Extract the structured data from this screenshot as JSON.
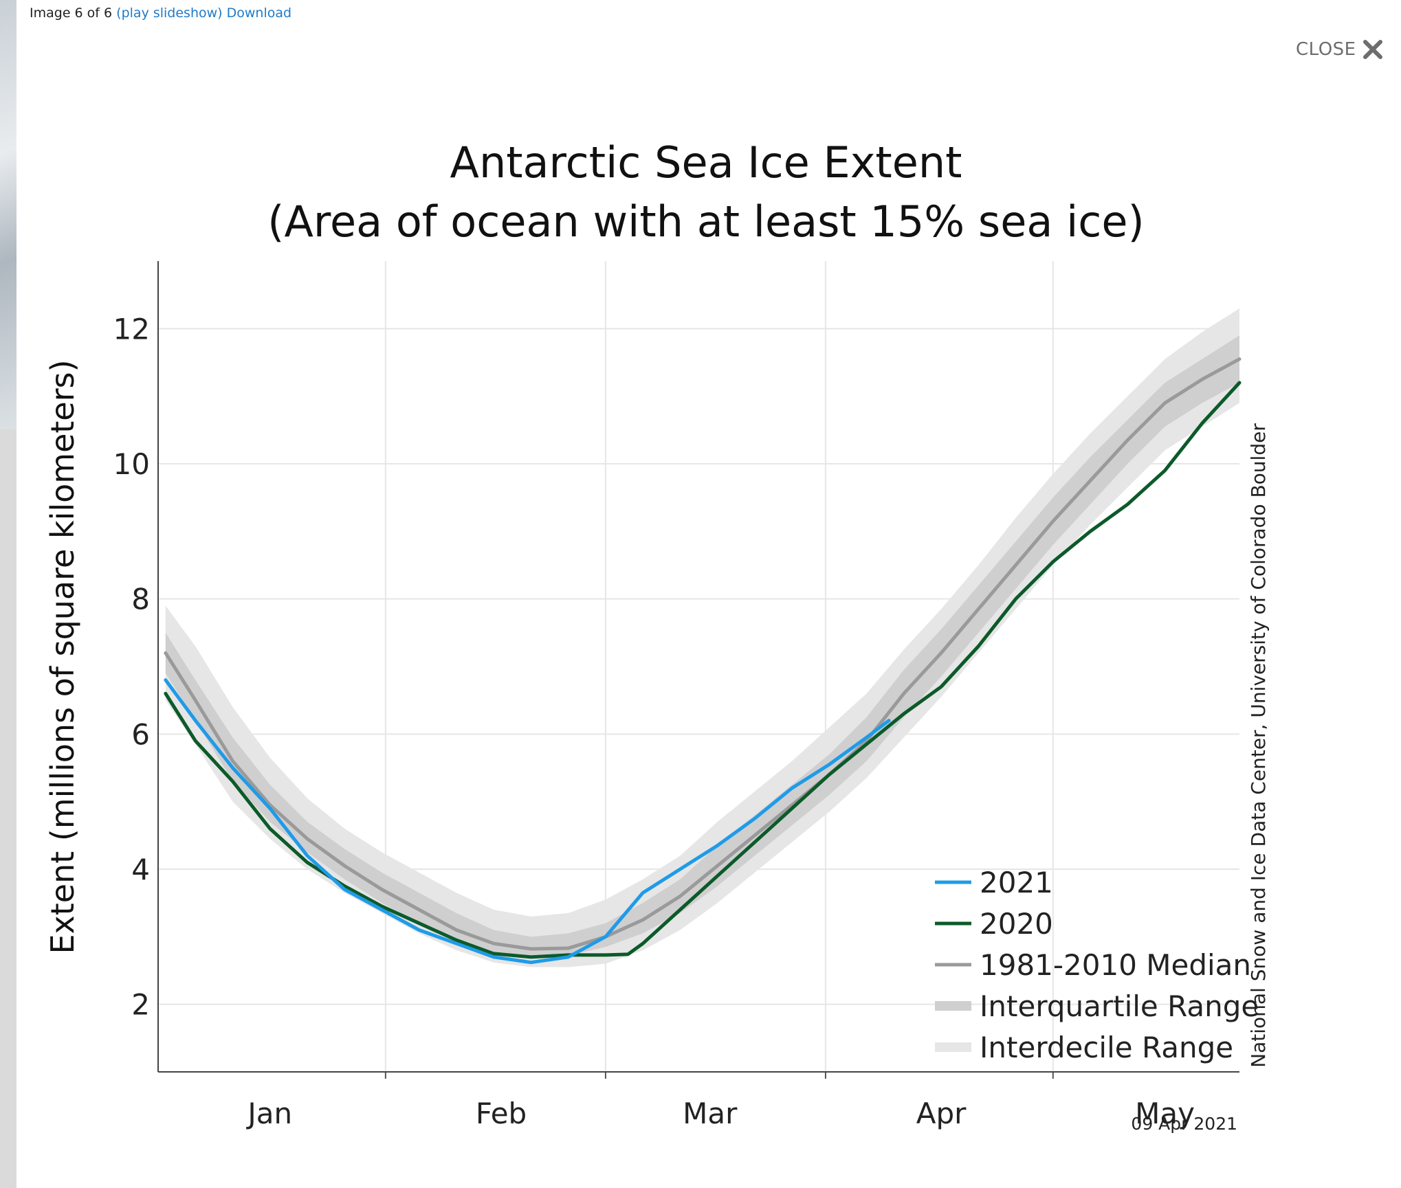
{
  "lightbox": {
    "counter": "Image 6 of 6",
    "slideshow_link": "(play slideshow)",
    "download_link": "Download",
    "close_label": "CLOSE"
  },
  "chart_data": {
    "type": "line",
    "title": "Antarctic Sea Ice Extent",
    "subtitle": "(Area of ocean with at least 15% sea ice)",
    "ylabel": "Extent (millions of square kilometers)",
    "xlabel": "",
    "xlim": [
      0,
      145
    ],
    "ylim": [
      1,
      13
    ],
    "yticks": [
      2,
      4,
      6,
      8,
      10,
      12
    ],
    "x_tick_labels": [
      {
        "label": "Jan",
        "x": 15
      },
      {
        "label": "Feb",
        "x": 46
      },
      {
        "label": "Mar",
        "x": 74
      },
      {
        "label": "Apr",
        "x": 105
      },
      {
        "label": "May",
        "x": 135
      }
    ],
    "x_unit": "day of year",
    "grid": true,
    "legend_position": "bottom-right",
    "credit": "National Snow and Ice Data Center, University of Colorado Boulder",
    "date_stamp": "09 Apr 2021",
    "colors": {
      "2021": "#1f9be8",
      "2020": "#0c5a2a",
      "median": "#9a9a9a",
      "iqr": "#cfcfcf",
      "idr": "#e6e6e6"
    },
    "series": [
      {
        "name": "2021",
        "x": [
          1,
          5,
          10,
          15,
          20,
          25,
          30,
          35,
          40,
          45,
          50,
          55,
          60,
          65,
          70,
          75,
          80,
          85,
          90,
          95,
          98
        ],
        "values": [
          6.8,
          6.2,
          5.5,
          4.9,
          4.2,
          3.7,
          3.4,
          3.1,
          2.9,
          2.7,
          2.62,
          2.7,
          3.0,
          3.65,
          4.0,
          4.35,
          4.75,
          5.2,
          5.55,
          5.95,
          6.2
        ]
      },
      {
        "name": "2020",
        "x": [
          1,
          5,
          10,
          15,
          20,
          25,
          30,
          35,
          40,
          45,
          50,
          55,
          60,
          63,
          65,
          70,
          75,
          80,
          85,
          90,
          95,
          100,
          105,
          110,
          115,
          120,
          125,
          130,
          135,
          140,
          145
        ],
        "values": [
          6.6,
          5.9,
          5.3,
          4.6,
          4.1,
          3.75,
          3.45,
          3.2,
          2.95,
          2.75,
          2.7,
          2.73,
          2.73,
          2.74,
          2.9,
          3.4,
          3.9,
          4.4,
          4.9,
          5.4,
          5.85,
          6.3,
          6.7,
          7.3,
          8.0,
          8.55,
          9.0,
          9.4,
          9.9,
          10.6,
          11.2
        ]
      },
      {
        "name": "1981-2010 Median",
        "x": [
          1,
          5,
          10,
          15,
          20,
          25,
          30,
          35,
          40,
          45,
          50,
          55,
          60,
          65,
          70,
          75,
          80,
          85,
          90,
          95,
          100,
          105,
          110,
          115,
          120,
          125,
          130,
          135,
          140,
          145
        ],
        "values": [
          7.2,
          6.5,
          5.6,
          4.95,
          4.45,
          4.05,
          3.7,
          3.4,
          3.1,
          2.9,
          2.82,
          2.83,
          3.0,
          3.25,
          3.6,
          4.05,
          4.5,
          4.95,
          5.4,
          5.9,
          6.6,
          7.2,
          7.85,
          8.5,
          9.15,
          9.75,
          10.35,
          10.9,
          11.25,
          11.55
        ]
      }
    ],
    "bands": [
      {
        "name": "Interquartile Range",
        "x": [
          1,
          5,
          10,
          15,
          20,
          25,
          30,
          35,
          40,
          45,
          50,
          55,
          60,
          65,
          70,
          75,
          80,
          85,
          90,
          95,
          100,
          105,
          110,
          115,
          120,
          125,
          130,
          135,
          140,
          145
        ],
        "lower": [
          6.9,
          6.2,
          5.3,
          4.7,
          4.25,
          3.85,
          3.5,
          3.2,
          2.95,
          2.75,
          2.7,
          2.72,
          2.85,
          3.05,
          3.35,
          3.75,
          4.2,
          4.65,
          5.1,
          5.6,
          6.25,
          6.85,
          7.5,
          8.15,
          8.8,
          9.4,
          10.0,
          10.55,
          10.9,
          11.2
        ],
        "upper": [
          7.5,
          6.8,
          5.95,
          5.25,
          4.7,
          4.3,
          3.95,
          3.65,
          3.35,
          3.1,
          3.0,
          3.05,
          3.2,
          3.5,
          3.85,
          4.35,
          4.8,
          5.25,
          5.7,
          6.25,
          6.95,
          7.55,
          8.2,
          8.85,
          9.5,
          10.1,
          10.65,
          11.2,
          11.55,
          11.9
        ]
      },
      {
        "name": "Interdecile Range",
        "x": [
          1,
          5,
          10,
          15,
          20,
          25,
          30,
          35,
          40,
          45,
          50,
          55,
          60,
          65,
          70,
          75,
          80,
          85,
          90,
          95,
          100,
          105,
          110,
          115,
          120,
          125,
          130,
          135,
          140,
          145
        ],
        "lower": [
          6.5,
          5.85,
          5.0,
          4.45,
          4.0,
          3.65,
          3.35,
          3.05,
          2.8,
          2.62,
          2.55,
          2.55,
          2.6,
          2.8,
          3.1,
          3.5,
          3.95,
          4.4,
          4.85,
          5.35,
          5.95,
          6.55,
          7.2,
          7.85,
          8.5,
          9.1,
          9.65,
          10.2,
          10.55,
          10.9
        ],
        "upper": [
          7.9,
          7.3,
          6.4,
          5.65,
          5.05,
          4.6,
          4.25,
          3.95,
          3.65,
          3.4,
          3.3,
          3.35,
          3.55,
          3.85,
          4.2,
          4.7,
          5.15,
          5.6,
          6.1,
          6.6,
          7.25,
          7.85,
          8.5,
          9.2,
          9.85,
          10.45,
          11.0,
          11.55,
          11.95,
          12.3
        ]
      }
    ]
  }
}
